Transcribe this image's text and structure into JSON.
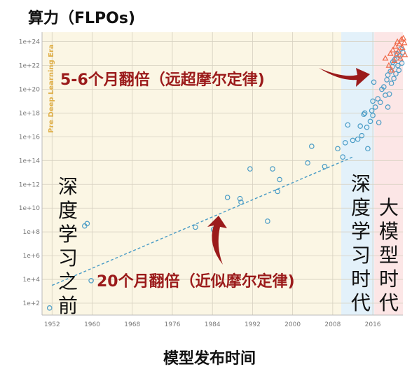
{
  "title": "算力（FLPOs)",
  "x_title": "模型发布时间",
  "eras": {
    "pre_dl_caption": "Pre Deep Learning Era",
    "pre_dl_label": "深度学习之前",
    "dl_label": "深度学习时代",
    "large_model_label": "大模型时代"
  },
  "annotations": {
    "top": "5-6个月翻倍（远超摩尔定律)",
    "bottom": "20个月翻倍（近似摩尔定律)"
  },
  "colors": {
    "pre_dl_bg": "#fbf6e4",
    "dl_bg": "#e3f1fa",
    "large_bg": "#fce6e6",
    "circle": "#4a9cc6",
    "triangle": "#ef6a4a",
    "trend": "#4a9cc6",
    "arrow": "#9b1b1b"
  },
  "chart_data": {
    "type": "scatter",
    "title": "算力（FLPOs)",
    "xlabel": "模型发布时间",
    "ylabel": "",
    "y_scale": "log10",
    "xlim": [
      1950,
      2022
    ],
    "ylim_exp": [
      1,
      24.8
    ],
    "x_ticks": [
      "1952",
      "1960",
      "1968",
      "1976",
      "1984",
      "1992",
      "2000",
      "2008",
      "2016"
    ],
    "y_ticks": [
      "1e+2",
      "1e+4",
      "1e+6",
      "1e+8",
      "1e+10",
      "1e+12",
      "1e+14",
      "1e+16",
      "1e+18",
      "1e+20",
      "1e+22",
      "1e+24"
    ],
    "trend_line": {
      "from": [
        1952,
        3.5
      ],
      "to": [
        2012,
        14.3
      ]
    },
    "series": [
      {
        "marker": "circle",
        "points": [
          [
            1951.5,
            1.6
          ],
          [
            1958.5,
            8.5
          ],
          [
            1959.0,
            8.7
          ],
          [
            1959.8,
            3.9
          ],
          [
            1980.6,
            8.4
          ],
          [
            1984.2,
            8.2
          ],
          [
            1987.0,
            10.9
          ],
          [
            1989.5,
            10.8
          ],
          [
            1989.7,
            10.5
          ],
          [
            1991.5,
            13.3
          ],
          [
            1995.0,
            8.9
          ],
          [
            1996.0,
            13.3
          ],
          [
            1997.0,
            11.4
          ],
          [
            1997.4,
            12.4
          ],
          [
            2003.0,
            13.8
          ],
          [
            2003.8,
            15.2
          ],
          [
            2006.4,
            13.5
          ],
          [
            2009.0,
            15.0
          ],
          [
            2010.0,
            14.3
          ],
          [
            2010.5,
            15.5
          ],
          [
            2011.0,
            17.0
          ],
          [
            2012.0,
            15.7
          ],
          [
            2013.0,
            15.8
          ],
          [
            2013.5,
            16.9
          ],
          [
            2013.8,
            16.1
          ],
          [
            2014.2,
            17.9
          ],
          [
            2014.4,
            18.0
          ],
          [
            2014.8,
            16.8
          ],
          [
            2015.0,
            15.0
          ],
          [
            2015.5,
            17.3
          ],
          [
            2015.8,
            18.2
          ],
          [
            2016.0,
            19.0
          ],
          [
            2016.0,
            17.8
          ],
          [
            2016.2,
            20.6
          ],
          [
            2016.5,
            18.5
          ],
          [
            2017.0,
            19.2
          ],
          [
            2017.2,
            17.2
          ],
          [
            2017.5,
            18.9
          ],
          [
            2017.8,
            20.0
          ],
          [
            2018.2,
            20.2
          ],
          [
            2018.5,
            19.5
          ],
          [
            2018.8,
            20.8
          ],
          [
            2019.0,
            21.2
          ],
          [
            2019.0,
            18.5
          ],
          [
            2019.3,
            19.6
          ],
          [
            2019.5,
            21.5
          ],
          [
            2019.7,
            20.5
          ],
          [
            2019.9,
            21.9
          ],
          [
            2020.0,
            22.3
          ],
          [
            2020.2,
            20.9
          ],
          [
            2020.4,
            22.5
          ],
          [
            2020.6,
            21.3
          ],
          [
            2020.8,
            23.0
          ],
          [
            2021.0,
            22.0
          ],
          [
            2021.2,
            21.6
          ],
          [
            2021.4,
            22.8
          ],
          [
            2021.6,
            23.4
          ],
          [
            2021.8,
            22.2
          ],
          [
            2022.0,
            23.1
          ]
        ]
      },
      {
        "marker": "triangle",
        "points": [
          [
            2018.5,
            22.6
          ],
          [
            2019.2,
            22.0
          ],
          [
            2019.5,
            23.0
          ],
          [
            2019.8,
            21.6
          ],
          [
            2020.0,
            23.3
          ],
          [
            2020.3,
            22.4
          ],
          [
            2020.5,
            23.6
          ],
          [
            2020.7,
            22.9
          ],
          [
            2020.9,
            24.0
          ],
          [
            2021.1,
            23.2
          ],
          [
            2021.3,
            23.8
          ],
          [
            2021.5,
            22.6
          ],
          [
            2021.7,
            24.2
          ],
          [
            2021.9,
            23.5
          ],
          [
            2022.1,
            24.3
          ],
          [
            2022.3,
            23.9
          ],
          [
            2022.4,
            22.9
          ]
        ]
      }
    ]
  }
}
